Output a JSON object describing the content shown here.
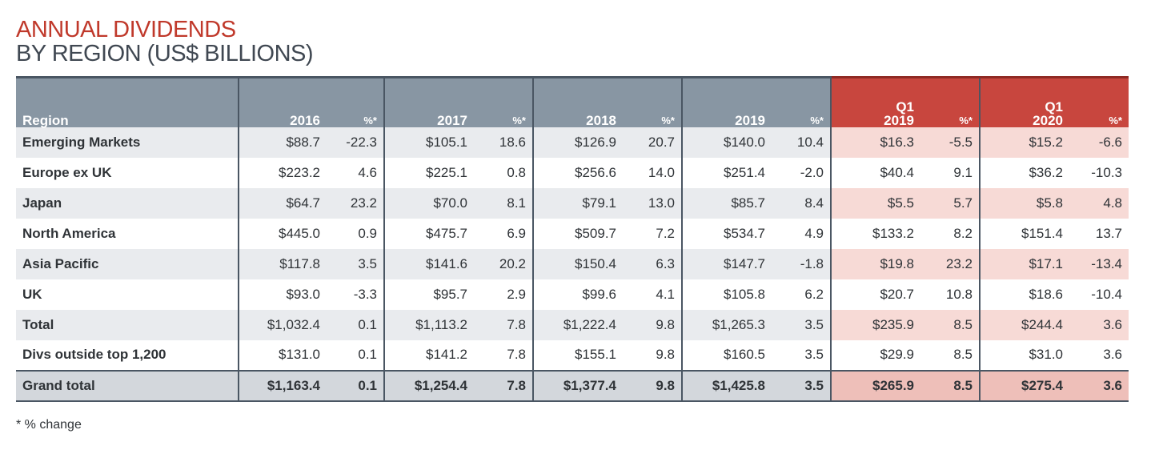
{
  "title": {
    "line1": "ANNUAL DIVIDENDS",
    "line2": "BY REGION (US$ BILLIONS)"
  },
  "footnote": "* % change",
  "colors": {
    "title_red": "#c0392b",
    "header_grey": "#8896a3",
    "header_q1_red": "#c8463e",
    "row_shade": "#e9ebee",
    "q1_shade": "#f7dad6"
  },
  "chart_data": {
    "type": "table",
    "title": "ANNUAL DIVIDENDS BY REGION (US$ BILLIONS)",
    "header": {
      "region": "Region",
      "y2016": "2016",
      "p2016": "%*",
      "y2017": "2017",
      "p2017": "%*",
      "y2018": "2018",
      "p2018": "%*",
      "y2019": "2019",
      "p2019": "%*",
      "q1a_line1": "Q1",
      "q1a_line2": "2019",
      "pq1a": "%*",
      "q1b_line1": "Q1",
      "q1b_line2": "2020",
      "pq1b": "%*"
    },
    "rows": [
      {
        "region": "Emerging Markets",
        "v2016": "$88.7",
        "p2016": "-22.3",
        "v2017": "$105.1",
        "p2017": "18.6",
        "v2018": "$126.9",
        "p2018": "20.7",
        "v2019": "$140.0",
        "p2019": "10.4",
        "vq1a": "$16.3",
        "pq1a": "-5.5",
        "vq1b": "$15.2",
        "pq1b": "-6.6"
      },
      {
        "region": "Europe ex UK",
        "v2016": "$223.2",
        "p2016": "4.6",
        "v2017": "$225.1",
        "p2017": "0.8",
        "v2018": "$256.6",
        "p2018": "14.0",
        "v2019": "$251.4",
        "p2019": "-2.0",
        "vq1a": "$40.4",
        "pq1a": "9.1",
        "vq1b": "$36.2",
        "pq1b": "-10.3"
      },
      {
        "region": "Japan",
        "v2016": "$64.7",
        "p2016": "23.2",
        "v2017": "$70.0",
        "p2017": "8.1",
        "v2018": "$79.1",
        "p2018": "13.0",
        "v2019": "$85.7",
        "p2019": "8.4",
        "vq1a": "$5.5",
        "pq1a": "5.7",
        "vq1b": "$5.8",
        "pq1b": "4.8"
      },
      {
        "region": "North America",
        "v2016": "$445.0",
        "p2016": "0.9",
        "v2017": "$475.7",
        "p2017": "6.9",
        "v2018": "$509.7",
        "p2018": "7.2",
        "v2019": "$534.7",
        "p2019": "4.9",
        "vq1a": "$133.2",
        "pq1a": "8.2",
        "vq1b": "$151.4",
        "pq1b": "13.7"
      },
      {
        "region": "Asia Pacific",
        "v2016": "$117.8",
        "p2016": "3.5",
        "v2017": "$141.6",
        "p2017": "20.2",
        "v2018": "$150.4",
        "p2018": "6.3",
        "v2019": "$147.7",
        "p2019": "-1.8",
        "vq1a": "$19.8",
        "pq1a": "23.2",
        "vq1b": "$17.1",
        "pq1b": "-13.4"
      },
      {
        "region": "UK",
        "v2016": "$93.0",
        "p2016": "-3.3",
        "v2017": "$95.7",
        "p2017": "2.9",
        "v2018": "$99.6",
        "p2018": "4.1",
        "v2019": "$105.8",
        "p2019": "6.2",
        "vq1a": "$20.7",
        "pq1a": "10.8",
        "vq1b": "$18.6",
        "pq1b": "-10.4"
      },
      {
        "region": "Total",
        "v2016": "$1,032.4",
        "p2016": "0.1",
        "v2017": "$1,113.2",
        "p2017": "7.8",
        "v2018": "$1,222.4",
        "p2018": "9.8",
        "v2019": "$1,265.3",
        "p2019": "3.5",
        "vq1a": "$235.9",
        "pq1a": "8.5",
        "vq1b": "$244.4",
        "pq1b": "3.6"
      },
      {
        "region": "Divs outside top 1,200",
        "v2016": "$131.0",
        "p2016": "0.1",
        "v2017": "$141.2",
        "p2017": "7.8",
        "v2018": "$155.1",
        "p2018": "9.8",
        "v2019": "$160.5",
        "p2019": "3.5",
        "vq1a": "$29.9",
        "pq1a": "8.5",
        "vq1b": "$31.0",
        "pq1b": "3.6"
      },
      {
        "region": "Grand total",
        "v2016": "$1,163.4",
        "p2016": "0.1",
        "v2017": "$1,254.4",
        "p2017": "7.8",
        "v2018": "$1,377.4",
        "p2018": "9.8",
        "v2019": "$1,425.8",
        "p2019": "3.5",
        "vq1a": "$265.9",
        "pq1a": "8.5",
        "vq1b": "$275.4",
        "pq1b": "3.6"
      }
    ]
  }
}
